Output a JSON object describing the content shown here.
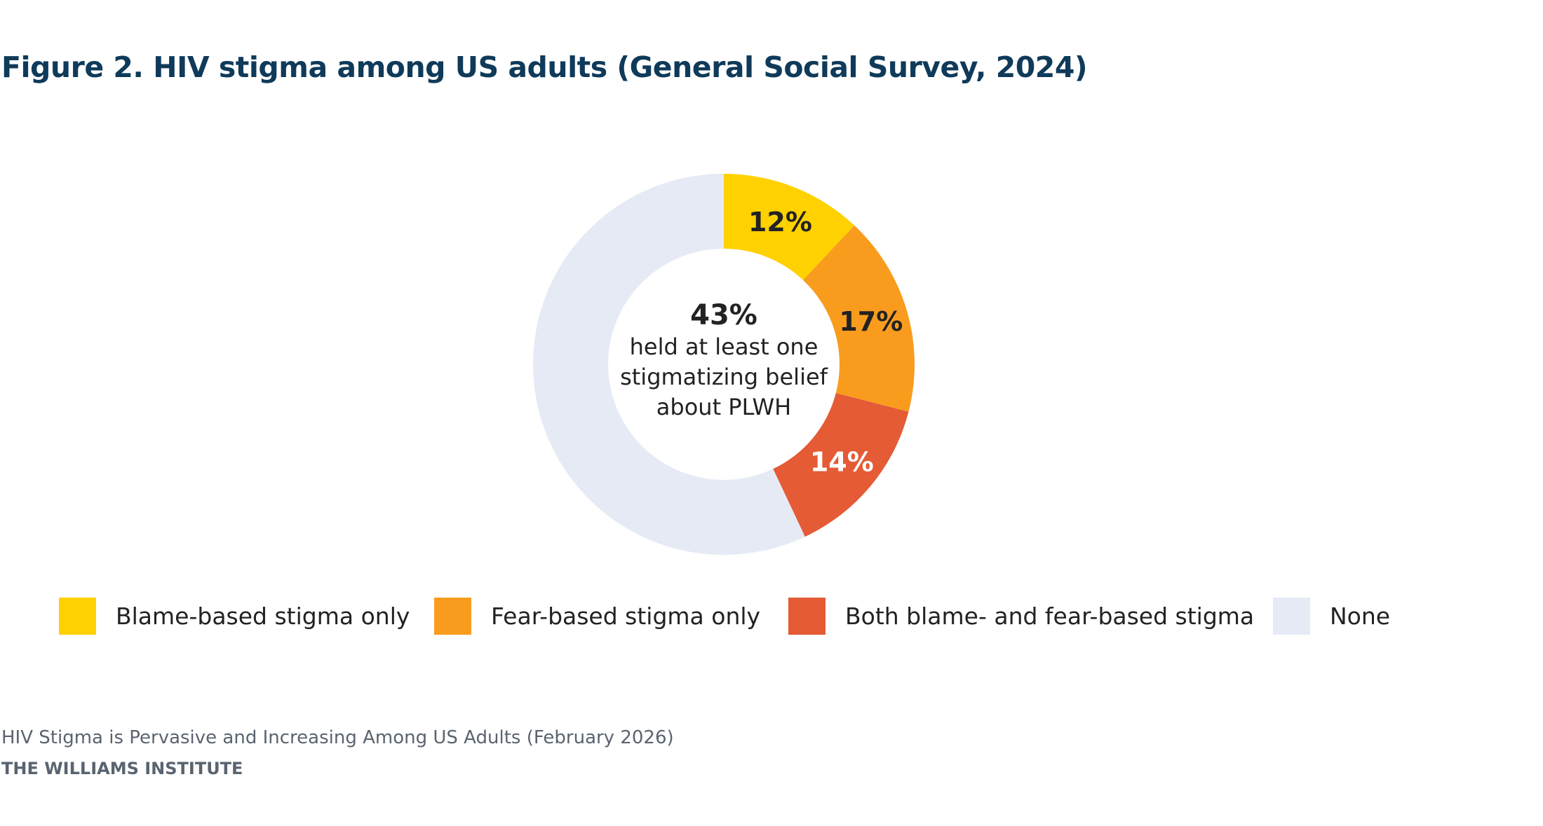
{
  "title": "Figure 2. HIV stigma among US adults (General Social Survey, 2024)",
  "chart_data": {
    "type": "pie",
    "subtype": "donut",
    "title": "Figure 2. HIV stigma among US adults (General Social Survey, 2024)",
    "slices": [
      {
        "name": "Blame-based stigma only",
        "value": 12,
        "label": "12%",
        "color": "#FFD100",
        "label_color": "#222222"
      },
      {
        "name": "Fear-based stigma only",
        "value": 17,
        "label": "17%",
        "color": "#F99C1E",
        "label_color": "#222222"
      },
      {
        "name": "Both blame- and fear-based stigma",
        "value": 14,
        "label": "14%",
        "color": "#E45B35",
        "label_color": "#FFFFFF"
      },
      {
        "name": "None",
        "value": 57,
        "label": "",
        "color": "#E6EAF5",
        "label_color": "#222222"
      }
    ],
    "center": {
      "value": "43%",
      "lines": [
        "held at least one",
        "stigmatizing belief",
        "about PLWH"
      ]
    },
    "legend_position": "bottom"
  },
  "footer": {
    "report": "HIV Stigma is Pervasive and Increasing Among US Adults (February 2026)",
    "org": "THE WILLIAMS INSTITUTE"
  }
}
